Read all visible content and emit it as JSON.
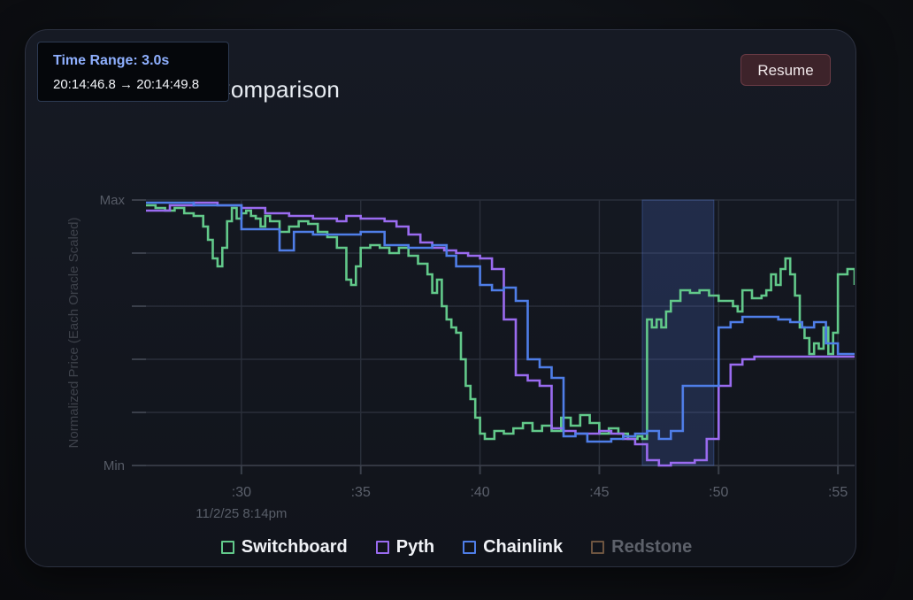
{
  "card": {
    "title": "Oracle Price Comparison",
    "resume_label": "Resume"
  },
  "tooltip": {
    "title": "Time Range: 3.0s",
    "range": "20:14:46.8 → 20:14:49.8"
  },
  "chart_data": {
    "type": "line",
    "title": "Oracle Price Comparison",
    "ylabel": "Normalized Price (Each Oracle Scaled)",
    "y_tick_labels": [
      {
        "value": 1,
        "label": "Max"
      },
      {
        "value": 0.8,
        "label": ""
      },
      {
        "value": 0.6,
        "label": ""
      },
      {
        "value": 0.4,
        "label": ""
      },
      {
        "value": 0.2,
        "label": ""
      },
      {
        "value": 0,
        "label": "Min"
      }
    ],
    "ylim": [
      0,
      1
    ],
    "xlim": [
      26.0,
      55.7
    ],
    "x_ticks": [
      {
        "value": 30,
        "label": ":30"
      },
      {
        "value": 35,
        "label": ":35"
      },
      {
        "value": 40,
        "label": ":40"
      },
      {
        "value": 45,
        "label": ":45"
      },
      {
        "value": 50,
        "label": ":50"
      },
      {
        "value": 55,
        "label": ":55"
      }
    ],
    "x_date_label": "11/2/25 8:14pm",
    "x_unit": "seconds past 20:14",
    "highlight": {
      "x_start": 46.8,
      "x_end": 49.8
    },
    "grid": true,
    "legend_position": "bottom",
    "series": [
      {
        "name": "Switchboard",
        "color": "#62c98a",
        "visible": true,
        "x": [
          26.0,
          26.4,
          26.8,
          27.2,
          27.6,
          28.0,
          28.4,
          28.6,
          28.8,
          29.0,
          29.2,
          29.4,
          29.6,
          29.8,
          30.0,
          30.2,
          30.4,
          30.6,
          30.8,
          31.0,
          31.2,
          31.6,
          32.0,
          32.4,
          32.8,
          33.2,
          33.6,
          34.0,
          34.4,
          34.6,
          34.8,
          35.0,
          35.4,
          35.8,
          36.2,
          36.6,
          37.0,
          37.4,
          37.8,
          38.0,
          38.2,
          38.4,
          38.6,
          38.8,
          39.0,
          39.2,
          39.4,
          39.6,
          39.8,
          40.0,
          40.2,
          40.4,
          40.6,
          41.0,
          41.4,
          41.8,
          42.2,
          42.6,
          43.0,
          43.4,
          43.8,
          44.2,
          44.6,
          45.0,
          45.4,
          45.8,
          46.2,
          46.6,
          46.8,
          47.0,
          47.2,
          47.4,
          47.6,
          47.8,
          48.0,
          48.4,
          48.8,
          49.2,
          49.6,
          50.0,
          50.4,
          50.6,
          50.8,
          51.0,
          51.4,
          51.8,
          52.0,
          52.2,
          52.4,
          52.6,
          52.8,
          53.0,
          53.2,
          53.4,
          53.6,
          53.8,
          54.0,
          54.2,
          54.4,
          54.6,
          54.8,
          55.0,
          55.4,
          55.7
        ],
        "y": [
          0.98,
          0.97,
          0.96,
          0.97,
          0.95,
          0.94,
          0.9,
          0.85,
          0.78,
          0.75,
          0.82,
          0.92,
          0.97,
          0.93,
          0.95,
          0.96,
          0.94,
          0.93,
          0.9,
          0.94,
          0.92,
          0.88,
          0.9,
          0.92,
          0.91,
          0.88,
          0.86,
          0.82,
          0.7,
          0.68,
          0.75,
          0.82,
          0.83,
          0.82,
          0.8,
          0.82,
          0.79,
          0.76,
          0.72,
          0.65,
          0.7,
          0.6,
          0.55,
          0.52,
          0.5,
          0.4,
          0.3,
          0.25,
          0.18,
          0.12,
          0.1,
          0.1,
          0.13,
          0.12,
          0.14,
          0.16,
          0.13,
          0.15,
          0.13,
          0.18,
          0.15,
          0.19,
          0.16,
          0.12,
          0.14,
          0.12,
          0.1,
          0.11,
          0.1,
          0.55,
          0.52,
          0.55,
          0.52,
          0.58,
          0.62,
          0.66,
          0.65,
          0.66,
          0.64,
          0.62,
          0.62,
          0.6,
          0.58,
          0.66,
          0.63,
          0.64,
          0.66,
          0.72,
          0.68,
          0.74,
          0.78,
          0.72,
          0.64,
          0.52,
          0.48,
          0.42,
          0.46,
          0.44,
          0.52,
          0.42,
          0.5,
          0.72,
          0.74,
          0.68
        ]
      },
      {
        "name": "Pyth",
        "color": "#9a6bf0",
        "visible": true,
        "x": [
          26.0,
          26.5,
          27.0,
          27.5,
          28.0,
          29.0,
          30.0,
          31.0,
          32.0,
          33.0,
          34.0,
          34.4,
          35.0,
          35.5,
          36.0,
          36.5,
          37.0,
          37.5,
          38.0,
          38.5,
          39.0,
          39.5,
          40.0,
          40.5,
          41.0,
          41.5,
          42.0,
          42.5,
          43.0,
          43.5,
          44.0,
          44.5,
          45.0,
          45.5,
          46.0,
          46.5,
          47.0,
          47.5,
          48.0,
          48.5,
          49.0,
          49.5,
          50.0,
          50.5,
          51.0,
          51.5,
          52.0,
          52.5,
          53.0,
          53.5,
          54.0,
          54.5,
          55.0,
          55.7
        ],
        "y": [
          0.96,
          0.96,
          0.98,
          0.98,
          0.99,
          0.98,
          0.97,
          0.95,
          0.94,
          0.93,
          0.92,
          0.94,
          0.93,
          0.93,
          0.92,
          0.9,
          0.87,
          0.84,
          0.82,
          0.81,
          0.8,
          0.79,
          0.78,
          0.74,
          0.55,
          0.34,
          0.32,
          0.3,
          0.14,
          0.13,
          0.12,
          0.12,
          0.13,
          0.12,
          0.1,
          0.08,
          0.02,
          0.0,
          0.01,
          0.01,
          0.02,
          0.1,
          0.3,
          0.38,
          0.4,
          0.41,
          0.41,
          0.41,
          0.41,
          0.41,
          0.41,
          0.41,
          0.41,
          0.41
        ]
      },
      {
        "name": "Chainlink",
        "color": "#4f7ee8",
        "visible": true,
        "x": [
          26.0,
          27.0,
          28.0,
          29.0,
          30.0,
          31.0,
          31.6,
          32.2,
          33.0,
          34.0,
          35.0,
          35.6,
          36.0,
          37.0,
          38.0,
          38.6,
          39.0,
          40.0,
          40.5,
          41.0,
          41.5,
          42.0,
          42.5,
          43.0,
          43.5,
          44.0,
          44.5,
          45.0,
          45.5,
          46.0,
          46.5,
          47.0,
          47.5,
          48.0,
          48.5,
          49.0,
          49.5,
          50.0,
          50.5,
          51.0,
          51.5,
          52.0,
          52.5,
          53.0,
          53.5,
          54.0,
          54.5,
          55.0,
          55.7
        ],
        "y": [
          0.99,
          0.99,
          0.98,
          0.98,
          0.89,
          0.89,
          0.81,
          0.88,
          0.87,
          0.87,
          0.88,
          0.88,
          0.83,
          0.82,
          0.83,
          0.79,
          0.75,
          0.68,
          0.66,
          0.67,
          0.62,
          0.4,
          0.37,
          0.33,
          0.11,
          0.12,
          0.09,
          0.09,
          0.1,
          0.11,
          0.12,
          0.13,
          0.1,
          0.13,
          0.3,
          0.3,
          0.3,
          0.52,
          0.54,
          0.56,
          0.56,
          0.56,
          0.55,
          0.54,
          0.52,
          0.54,
          0.46,
          0.42,
          0.42
        ]
      },
      {
        "name": "Redstone",
        "color": "#6e5540",
        "visible": false,
        "x": [],
        "y": []
      }
    ]
  }
}
